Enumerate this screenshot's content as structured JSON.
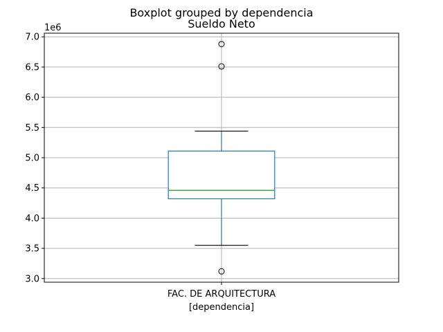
{
  "chart_data": {
    "type": "boxplot",
    "suptitle": "Boxplot grouped by dependencia",
    "title": "Sueldo Neto",
    "xlabel": "[dependencia]",
    "ylabel": "",
    "y_offset_label": "1e6",
    "categories": [
      "FAC. DE ARQUITECTURA"
    ],
    "ylim": [
      2.94,
      7.06
    ],
    "yticks": [
      3.0,
      3.5,
      4.0,
      4.5,
      5.0,
      5.5,
      6.0,
      6.5,
      7.0
    ],
    "ytick_labels": [
      "3.0",
      "3.5",
      "4.0",
      "4.5",
      "5.0",
      "5.5",
      "6.0",
      "6.5",
      "7.0"
    ],
    "grid": true,
    "boxes": [
      {
        "category": "FAC. DE ARQUITECTURA",
        "whisker_low": 3.55,
        "q1": 4.32,
        "median": 4.46,
        "q3": 5.11,
        "whisker_high": 5.44,
        "outliers": [
          3.12,
          6.51,
          6.88
        ]
      }
    ],
    "colors": {
      "box": "#1f77b4",
      "median": "#2ca02c",
      "whisker": "#1f77b4",
      "cap": "#000000",
      "grid": "#b0b0b0"
    }
  }
}
